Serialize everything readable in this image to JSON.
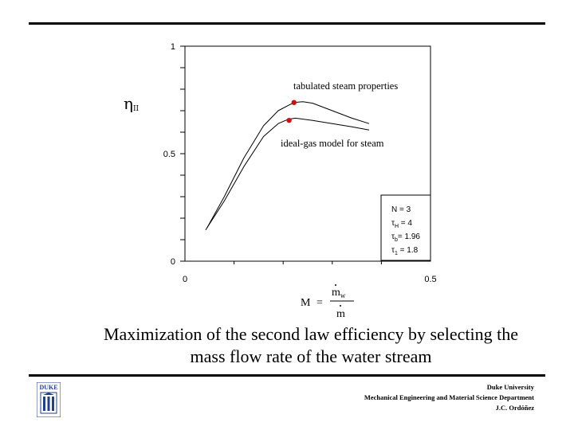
{
  "chart_data": {
    "type": "line",
    "title": "",
    "xlabel": "",
    "ylabel_main": "η",
    "ylabel_sub": "II",
    "xlim": [
      0,
      0.5
    ],
    "ylim": [
      0,
      1
    ],
    "x_ticks": [
      {
        "value": 0,
        "label": "0"
      },
      {
        "value": 0.5,
        "label": "0.5"
      }
    ],
    "y_ticks": [
      {
        "value": 0,
        "label": "0"
      },
      {
        "value": 0.5,
        "label": "0.5"
      },
      {
        "value": 1,
        "label": "1"
      }
    ],
    "minor_tick_step": 0.1,
    "grid": false,
    "series": [
      {
        "name": "tabulated steam properties",
        "x": [
          0.045,
          0.08,
          0.12,
          0.16,
          0.19,
          0.215,
          0.23,
          0.24,
          0.26,
          0.3,
          0.34,
          0.375
        ],
        "y": [
          0.155,
          0.3,
          0.48,
          0.63,
          0.7,
          0.73,
          0.74,
          0.742,
          0.735,
          0.7,
          0.665,
          0.64
        ],
        "marker": {
          "x": 0.222,
          "y": 0.738
        }
      },
      {
        "name": "ideal-gas model for steam",
        "x": [
          0.042,
          0.08,
          0.12,
          0.16,
          0.19,
          0.21,
          0.225,
          0.26,
          0.3,
          0.34,
          0.375
        ],
        "y": [
          0.145,
          0.28,
          0.44,
          0.58,
          0.64,
          0.66,
          0.665,
          0.655,
          0.64,
          0.625,
          0.61
        ],
        "marker": {
          "x": 0.212,
          "y": 0.655
        }
      }
    ],
    "annotations": {
      "tabulated": "tabulated steam properties",
      "ideal_gas": "ideal-gas model for steam"
    },
    "params_box": [
      {
        "symbol": "N",
        "sub": "",
        "text": " = 3"
      },
      {
        "symbol": "τ",
        "sub": "H",
        "text": " = 4"
      },
      {
        "symbol": "τ",
        "sub": "b",
        "text": "= 1.96"
      },
      {
        "symbol": "τ",
        "sub": "1",
        "text": " = 1.8"
      }
    ],
    "colors": {
      "line": "#000000",
      "marker": "#cc1111"
    }
  },
  "formula": {
    "lhs": "M",
    "eq": "=",
    "numerator": "m",
    "numerator_sub": "w",
    "denominator": "m"
  },
  "caption": {
    "line1": "Maximization of the second law efficiency by selecting the",
    "line2": "mass flow rate of the water stream"
  },
  "footer": {
    "line1": "Duke University",
    "line2": "Mechanical Engineering and Material Science Department",
    "line3": "J.C. Ordóñez"
  },
  "logo": {
    "text": "DUKE",
    "color": "#1f3f8f"
  }
}
